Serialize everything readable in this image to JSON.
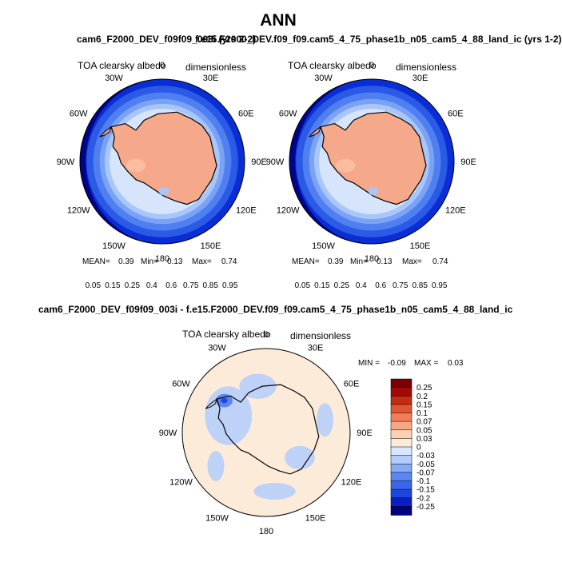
{
  "page": {
    "title": "ANN"
  },
  "top_left_title": "cam6_F2000_DEV_f09f09_003i (yrs 2-2)",
  "top_right_title": "f.e15.F2000_DEV.f09_f09.cam5_4_75_phase1b_n05_cam5_4_88_land_ic (yrs 1-2)",
  "diff_title": "cam6_F2000_DEV_f09f09_003i - f.e15.F2000_DEV.f09_f09.cam5_4_75_phase1b_n05_cam5_4_88_land_ic",
  "colors": {
    "abs_scale": [
      "#00007f",
      "#0a2ed6",
      "#2a5ae6",
      "#4f7ff0",
      "#7aa3f5",
      "#a9c6fa",
      "#d6e5fc",
      "#fde6d4",
      "#fbc2a4",
      "#f49b78",
      "#e86a4a",
      "#cc3a24",
      "#a3110c",
      "#7a0000"
    ],
    "diff_scale": [
      "#00007f",
      "#0a1fc2",
      "#1f45e0",
      "#3a66ee",
      "#5a86f4",
      "#86aaf8",
      "#b3ccfb",
      "#d8e6fd",
      "#fdebd9",
      "#fbd0b3",
      "#f7a883",
      "#f07d58",
      "#e4522f",
      "#c42b12",
      "#a30a05",
      "#7a0000"
    ],
    "land": "#f5a98a",
    "continent_outline": "#000000"
  },
  "chart_data": [
    {
      "type": "heatmap",
      "projection": "south-polar-stereographic",
      "title": "TOA clearsky albedo",
      "units": "dimensionless",
      "lon_labels": [
        "0",
        "30E",
        "60E",
        "90E",
        "120E",
        "150E",
        "180",
        "150W",
        "120W",
        "90W",
        "60W",
        "30W"
      ],
      "stats": {
        "mean_label": "MEAN=",
        "mean": "0.39",
        "min_label": "Min=",
        "min": "0.13",
        "max_label": "Max=",
        "max": "0.74"
      },
      "colorbar_levels": [
        "0.05",
        "0.15",
        "0.25",
        "0.4",
        "0.6",
        "0.75",
        "0.85",
        "0.95"
      ]
    },
    {
      "type": "heatmap",
      "projection": "south-polar-stereographic",
      "title": "TOA clearsky albedo",
      "units": "dimensionless",
      "lon_labels": [
        "0",
        "30E",
        "60E",
        "90E",
        "120E",
        "150E",
        "180",
        "150W",
        "120W",
        "90W",
        "60W",
        "30W"
      ],
      "stats": {
        "mean_label": "MEAN=",
        "mean": "0.39",
        "min_label": "Min=",
        "min": "0.13",
        "max_label": "Max=",
        "max": "0.74"
      },
      "colorbar_levels": [
        "0.05",
        "0.15",
        "0.25",
        "0.4",
        "0.6",
        "0.75",
        "0.85",
        "0.95"
      ]
    },
    {
      "type": "heatmap",
      "projection": "south-polar-stereographic",
      "title": "TOA clearsky albedo",
      "units": "dimensionless",
      "lon_labels": [
        "0",
        "30E",
        "60E",
        "90E",
        "120E",
        "150E",
        "180",
        "150W",
        "120W",
        "90W",
        "60W",
        "30W"
      ],
      "stats": {
        "min_label": "MIN =",
        "min": "-0.09",
        "max_label": "MAX =",
        "max": "0.03"
      },
      "colorbar_levels": [
        "0.25",
        "0.2",
        "0.15",
        "0.1",
        "0.07",
        "0.05",
        "0.03",
        "0",
        "-0.03",
        "-0.05",
        "-0.07",
        "-0.1",
        "-0.15",
        "-0.2",
        "-0.25"
      ]
    }
  ]
}
